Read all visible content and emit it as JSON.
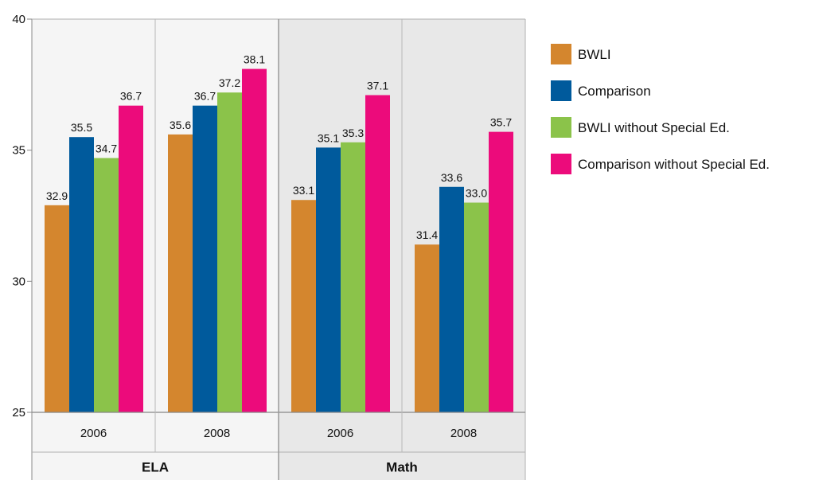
{
  "chart_data": {
    "type": "bar",
    "title": "",
    "xlabel": "",
    "ylabel": "",
    "ylim": [
      25,
      40
    ],
    "yticks": [
      "25",
      "30",
      "35",
      "40"
    ],
    "groups": [
      {
        "name": "ELA",
        "categories": [
          "2006",
          "2008"
        ]
      },
      {
        "name": "Math",
        "categories": [
          "2006",
          "2008"
        ]
      }
    ],
    "series": [
      {
        "name": "BWLI",
        "color": "#d4862e",
        "values": [
          32.9,
          35.6,
          33.1,
          31.4
        ],
        "labels": [
          "32.9",
          "35.6",
          "33.1",
          "31.4"
        ]
      },
      {
        "name": "Comparison",
        "color": "#005a9c",
        "values": [
          35.5,
          36.7,
          35.1,
          33.6
        ],
        "labels": [
          "35.5",
          "36.7",
          "35.1",
          "33.6"
        ]
      },
      {
        "name": "BWLI without Special Ed.",
        "color": "#8bc34a",
        "values": [
          34.7,
          37.2,
          35.3,
          33.0
        ],
        "labels": [
          "34.7",
          "37.2",
          "35.3",
          "33.0"
        ]
      },
      {
        "name": "Comparison without Special Ed.",
        "color": "#ec0b7b",
        "values": [
          36.7,
          38.1,
          37.1,
          35.7
        ],
        "labels": [
          "36.7",
          "38.1",
          "37.1",
          "35.7"
        ]
      }
    ],
    "grid": false,
    "legend_position": "right",
    "panel_colors": [
      "#f5f5f5",
      "#e8e8e8"
    ]
  }
}
